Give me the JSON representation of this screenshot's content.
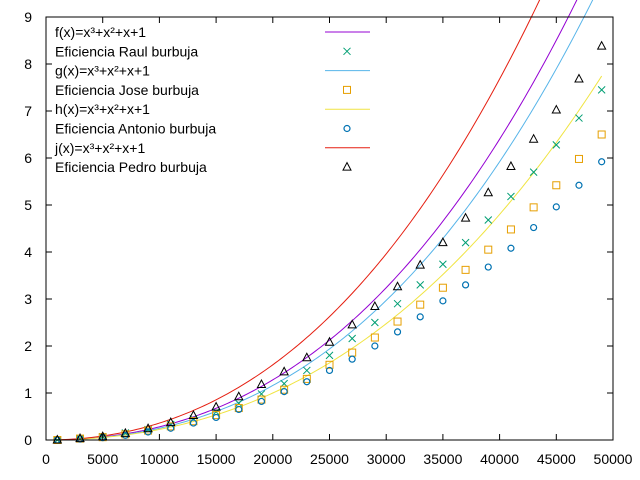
{
  "chart_data": {
    "type": "line",
    "title": "",
    "xlabel": "",
    "ylabel": "",
    "xlim": [
      0,
      50000
    ],
    "ylim": [
      0,
      9
    ],
    "grid": false,
    "legend_position": "top-left",
    "x_ticks": [
      "0",
      "5000",
      "10000",
      "15000",
      "20000",
      "25000",
      "30000",
      "35000",
      "40000",
      "45000",
      "50000"
    ],
    "y_ticks": [
      "0",
      "1",
      "2",
      "3",
      "4",
      "5",
      "6",
      "7",
      "8",
      "9"
    ],
    "x": [
      1000,
      3000,
      5000,
      7000,
      9000,
      11000,
      13000,
      15000,
      17000,
      19000,
      21000,
      23000,
      25000,
      27000,
      29000,
      31000,
      33000,
      35000,
      37000,
      39000,
      41000,
      43000,
      45000,
      47000,
      49000
    ],
    "series": [
      {
        "name": "f(x)=x³+x²+x+1",
        "kind": "line",
        "color": "#9400d3",
        "coef": [
          3.1e-06,
          2.4e-09,
          4e-14,
          0.0
        ]
      },
      {
        "name": "Eficiencia Raul burbuja",
        "kind": "points",
        "marker": "x",
        "color": "#009e73",
        "values": [
          0.0,
          0.03,
          0.07,
          0.15,
          0.22,
          0.33,
          0.45,
          0.6,
          0.78,
          0.98,
          1.2,
          1.48,
          1.8,
          2.16,
          2.5,
          2.9,
          3.3,
          3.74,
          4.2,
          4.68,
          5.18,
          5.7,
          6.28,
          6.85,
          7.45
        ]
      },
      {
        "name": "g(x)=x³+x²+x+1",
        "kind": "line",
        "color": "#56b4e9",
        "coef": [
          3e-06,
          2.1e-09,
          4e-14,
          0.0
        ]
      },
      {
        "name": "Eficiencia Jose burbuja",
        "kind": "points",
        "marker": "square",
        "color": "#e69f00",
        "values": [
          0.0,
          0.03,
          0.06,
          0.12,
          0.2,
          0.29,
          0.4,
          0.53,
          0.68,
          0.86,
          1.07,
          1.3,
          1.6,
          1.86,
          2.18,
          2.52,
          2.88,
          3.24,
          3.62,
          4.05,
          4.48,
          4.95,
          5.42,
          5.98,
          6.5
        ]
      },
      {
        "name": "h(x)=x³+x²+x+1",
        "kind": "line",
        "color": "#f0e442",
        "coef": [
          2.5e-06,
          2e-09,
          2.5e-14,
          0.0
        ]
      },
      {
        "name": "Eficiencia Antonio burbuja",
        "kind": "points",
        "marker": "circle",
        "color": "#0072b2",
        "values": [
          0.0,
          0.02,
          0.05,
          0.1,
          0.17,
          0.25,
          0.36,
          0.48,
          0.65,
          0.82,
          1.03,
          1.24,
          1.48,
          1.72,
          2.0,
          2.3,
          2.62,
          2.96,
          3.3,
          3.68,
          4.08,
          4.52,
          4.96,
          5.42,
          5.92
        ]
      },
      {
        "name": "j(x)=x³+x²+x+1",
        "kind": "line",
        "color": "#e51e10",
        "coef": [
          3e-06,
          3.2e-09,
          4e-14,
          0.0
        ]
      },
      {
        "name": "Eficiencia Pedro burbuja",
        "kind": "points",
        "marker": "triangle",
        "color": "#000000",
        "values": [
          0.0,
          0.03,
          0.07,
          0.14,
          0.24,
          0.37,
          0.52,
          0.7,
          0.92,
          1.18,
          1.45,
          1.75,
          2.08,
          2.45,
          2.84,
          3.26,
          3.72,
          4.2,
          4.72,
          5.26,
          5.82,
          6.4,
          7.02,
          7.68,
          8.38
        ]
      }
    ]
  }
}
